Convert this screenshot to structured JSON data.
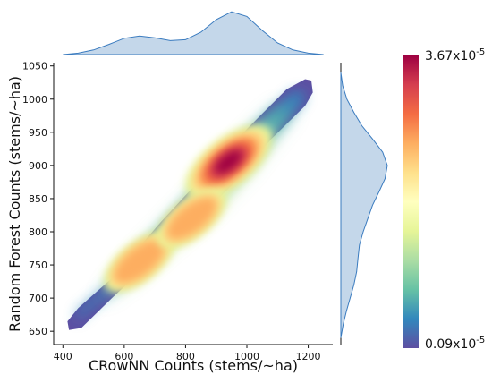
{
  "chart_data": {
    "type": "kde-joint",
    "xlabel": "CRowNN Counts (stems/~ha)",
    "ylabel": "Random Forest Counts (stems/~ha)",
    "xlim": [
      370,
      1280
    ],
    "ylim": [
      630,
      1055
    ],
    "xticks": [
      400,
      600,
      800,
      1000,
      1200
    ],
    "yticks": [
      650,
      700,
      750,
      800,
      850,
      900,
      950,
      1000,
      1050
    ],
    "colorbar": {
      "max_label": "3.67x10",
      "max_exp": "-5",
      "min_label": "0.09x10",
      "min_exp": "-5",
      "colormap": "Spectral_r",
      "colors": [
        "#5e4fa2",
        "#3288bd",
        "#66c2a5",
        "#abdda4",
        "#e6f598",
        "#ffffbf",
        "#fee08b",
        "#fdae61",
        "#f46d43",
        "#d53e4f",
        "#9e0142"
      ]
    },
    "density_peaks": [
      {
        "x": 940,
        "y": 905,
        "level": 1.0
      },
      {
        "x": 650,
        "y": 755,
        "level": 0.55
      },
      {
        "x": 820,
        "y": 820,
        "level": 0.5
      }
    ],
    "x_marginal": {
      "color": "#c4d7ea",
      "edge_color": "#3a7bbf",
      "x": [
        400,
        450,
        500,
        550,
        600,
        650,
        700,
        750,
        800,
        850,
        900,
        950,
        1000,
        1050,
        1100,
        1150,
        1200,
        1250
      ],
      "density": [
        0.0,
        0.03,
        0.1,
        0.22,
        0.35,
        0.4,
        0.36,
        0.3,
        0.32,
        0.48,
        0.75,
        0.92,
        0.82,
        0.52,
        0.25,
        0.1,
        0.03,
        0.0
      ]
    },
    "y_marginal": {
      "color": "#c4d7ea",
      "edge_color": "#3a7bbf",
      "y": [
        640,
        660,
        680,
        700,
        720,
        740,
        760,
        780,
        800,
        820,
        840,
        860,
        880,
        900,
        920,
        940,
        960,
        980,
        1000,
        1020,
        1040
      ],
      "density": [
        0.0,
        0.05,
        0.12,
        0.2,
        0.28,
        0.34,
        0.37,
        0.4,
        0.48,
        0.58,
        0.68,
        0.82,
        0.95,
        1.0,
        0.9,
        0.68,
        0.45,
        0.28,
        0.13,
        0.04,
        0.0
      ]
    }
  }
}
